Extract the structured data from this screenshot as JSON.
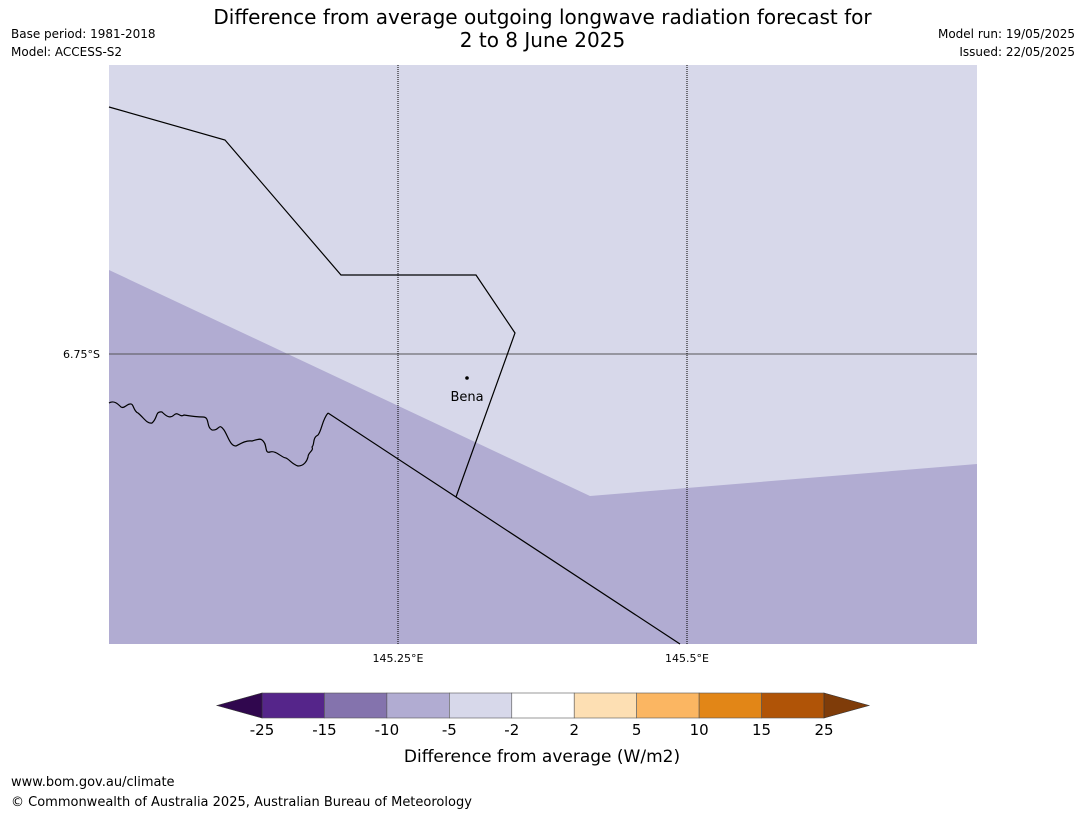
{
  "header": {
    "title_line1": "Difference from average outgoing longwave radiation forecast for",
    "title_line2": "2 to 8 June 2025",
    "base_period": "Base period: 1981-2018",
    "model": "Model: ACCESS-S2",
    "model_run": "Model run: 19/05/2025",
    "issued": "Issued: 22/05/2025"
  },
  "map": {
    "lat_label": "6.75°S",
    "lon_labels": [
      "145.25°E",
      "145.5°E"
    ],
    "place_label": "Bena",
    "colors": {
      "region_light": "#d7d8ea",
      "region_dark": "#b1acd2",
      "boundary": "#000000",
      "gridline": "#555555"
    }
  },
  "legend": {
    "title": "Difference from average (W/m2)",
    "tick_labels": [
      "-25",
      "-15",
      "-10",
      "-5",
      "-2",
      "2",
      "5",
      "10",
      "15",
      "25"
    ],
    "bin_colors": [
      "#55258a",
      "#8473ad",
      "#b1acd2",
      "#d7d8ea",
      "#ffffff",
      "#fddfb3",
      "#fbb662",
      "#e28617",
      "#b05407"
    ],
    "under_color": "#30074e",
    "over_color": "#7f3c09"
  },
  "footer": {
    "url": "www.bom.gov.au/climate",
    "copyright": "© Commonwealth of Australia 2025, Australian Bureau of Meteorology"
  }
}
